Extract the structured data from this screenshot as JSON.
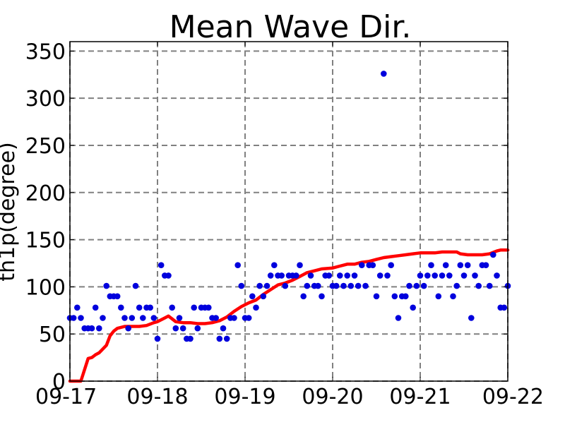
{
  "chart_data": {
    "type": "scatter",
    "title": "Mean Wave Dir.",
    "xlabel": "",
    "ylabel": "th1p(degree)",
    "x_ticks": [
      "09-17",
      "09-18",
      "09-19",
      "09-20",
      "09-21",
      "09-22"
    ],
    "y_ticks": [
      "0",
      "50",
      "100",
      "150",
      "200",
      "250",
      "300",
      "350"
    ],
    "xlim": [
      "09-17",
      "09-22"
    ],
    "ylim": [
      0,
      360
    ],
    "grid": true,
    "legend": "none",
    "series": [
      {
        "kind": "scatter",
        "color": "#0000dd",
        "points": [
          [
            "09-17 00:00",
            67
          ],
          [
            "09-17 01:00",
            67
          ],
          [
            "09-17 02:00",
            78
          ],
          [
            "09-17 03:00",
            67
          ],
          [
            "09-17 04:00",
            56
          ],
          [
            "09-17 05:00",
            56
          ],
          [
            "09-17 06:00",
            56
          ],
          [
            "09-17 07:00",
            78
          ],
          [
            "09-17 08:00",
            56
          ],
          [
            "09-17 09:00",
            67
          ],
          [
            "09-17 10:00",
            101
          ],
          [
            "09-17 11:00",
            90
          ],
          [
            "09-17 12:00",
            90
          ],
          [
            "09-17 13:00",
            90
          ],
          [
            "09-17 14:00",
            78
          ],
          [
            "09-17 15:00",
            67
          ],
          [
            "09-17 16:00",
            56
          ],
          [
            "09-17 17:00",
            67
          ],
          [
            "09-17 18:00",
            101
          ],
          [
            "09-17 19:00",
            78
          ],
          [
            "09-17 20:00",
            67
          ],
          [
            "09-17 21:00",
            78
          ],
          [
            "09-17 22:00",
            78
          ],
          [
            "09-17 23:00",
            67
          ],
          [
            "09-18 00:00",
            45
          ],
          [
            "09-18 01:00",
            123
          ],
          [
            "09-18 02:00",
            112
          ],
          [
            "09-18 03:00",
            112
          ],
          [
            "09-18 04:00",
            78
          ],
          [
            "09-18 05:00",
            56
          ],
          [
            "09-18 06:00",
            67
          ],
          [
            "09-18 07:00",
            56
          ],
          [
            "09-18 08:00",
            45
          ],
          [
            "09-18 09:00",
            45
          ],
          [
            "09-18 10:00",
            78
          ],
          [
            "09-18 11:00",
            56
          ],
          [
            "09-18 12:00",
            78
          ],
          [
            "09-18 13:00",
            78
          ],
          [
            "09-18 14:00",
            78
          ],
          [
            "09-18 15:00",
            67
          ],
          [
            "09-18 16:00",
            67
          ],
          [
            "09-18 17:00",
            45
          ],
          [
            "09-18 18:00",
            56
          ],
          [
            "09-18 19:00",
            45
          ],
          [
            "09-18 20:00",
            67
          ],
          [
            "09-18 21:00",
            67
          ],
          [
            "09-18 22:00",
            123
          ],
          [
            "09-18 23:00",
            101
          ],
          [
            "09-19 00:00",
            67
          ],
          [
            "09-19 01:00",
            67
          ],
          [
            "09-19 02:00",
            90
          ],
          [
            "09-19 03:00",
            78
          ],
          [
            "09-19 04:00",
            101
          ],
          [
            "09-19 05:00",
            90
          ],
          [
            "09-19 06:00",
            101
          ],
          [
            "09-19 07:00",
            112
          ],
          [
            "09-19 08:00",
            123
          ],
          [
            "09-19 09:00",
            112
          ],
          [
            "09-19 10:00",
            112
          ],
          [
            "09-19 11:00",
            101
          ],
          [
            "09-19 12:00",
            112
          ],
          [
            "09-19 13:00",
            112
          ],
          [
            "09-19 14:00",
            112
          ],
          [
            "09-19 15:00",
            123
          ],
          [
            "09-19 16:00",
            90
          ],
          [
            "09-19 17:00",
            101
          ],
          [
            "09-19 18:00",
            112
          ],
          [
            "09-19 19:00",
            101
          ],
          [
            "09-19 20:00",
            101
          ],
          [
            "09-19 21:00",
            90
          ],
          [
            "09-19 22:00",
            112
          ],
          [
            "09-19 23:00",
            112
          ],
          [
            "09-20 00:00",
            101
          ],
          [
            "09-20 01:00",
            101
          ],
          [
            "09-20 02:00",
            112
          ],
          [
            "09-20 03:00",
            101
          ],
          [
            "09-20 04:00",
            112
          ],
          [
            "09-20 05:00",
            101
          ],
          [
            "09-20 06:00",
            112
          ],
          [
            "09-20 07:00",
            101
          ],
          [
            "09-20 08:00",
            123
          ],
          [
            "09-20 09:00",
            101
          ],
          [
            "09-20 10:00",
            123
          ],
          [
            "09-20 11:00",
            123
          ],
          [
            "09-20 12:00",
            90
          ],
          [
            "09-20 13:00",
            112
          ],
          [
            "09-20 14:00",
            326
          ],
          [
            "09-20 15:00",
            112
          ],
          [
            "09-20 16:00",
            123
          ],
          [
            "09-20 17:00",
            90
          ],
          [
            "09-20 18:00",
            67
          ],
          [
            "09-20 19:00",
            90
          ],
          [
            "09-20 20:00",
            90
          ],
          [
            "09-20 21:00",
            101
          ],
          [
            "09-20 22:00",
            78
          ],
          [
            "09-20 23:00",
            101
          ],
          [
            "09-21 00:00",
            112
          ],
          [
            "09-21 01:00",
            101
          ],
          [
            "09-21 02:00",
            112
          ],
          [
            "09-21 03:00",
            123
          ],
          [
            "09-21 04:00",
            112
          ],
          [
            "09-21 05:00",
            90
          ],
          [
            "09-21 06:00",
            112
          ],
          [
            "09-21 07:00",
            123
          ],
          [
            "09-21 08:00",
            112
          ],
          [
            "09-21 09:00",
            90
          ],
          [
            "09-21 10:00",
            101
          ],
          [
            "09-21 11:00",
            123
          ],
          [
            "09-21 12:00",
            112
          ],
          [
            "09-21 13:00",
            123
          ],
          [
            "09-21 14:00",
            67
          ],
          [
            "09-21 15:00",
            112
          ],
          [
            "09-21 16:00",
            101
          ],
          [
            "09-21 17:00",
            123
          ],
          [
            "09-21 18:00",
            123
          ],
          [
            "09-21 19:00",
            101
          ],
          [
            "09-21 20:00",
            134
          ],
          [
            "09-21 21:00",
            112
          ],
          [
            "09-21 22:00",
            78
          ],
          [
            "09-21 23:00",
            78
          ],
          [
            "09-22 00:00",
            101
          ]
        ]
      },
      {
        "kind": "line",
        "color": "#ff0000",
        "points": [
          [
            "09-17 00:00",
            0
          ],
          [
            "09-17 02:00",
            0
          ],
          [
            "09-17 03:00",
            0
          ],
          [
            "09-17 05:00",
            24
          ],
          [
            "09-17 06:00",
            25
          ],
          [
            "09-17 07:00",
            28
          ],
          [
            "09-17 08:00",
            30
          ],
          [
            "09-17 09:00",
            34
          ],
          [
            "09-17 10:00",
            38
          ],
          [
            "09-17 11:00",
            48
          ],
          [
            "09-17 12:00",
            53
          ],
          [
            "09-17 13:00",
            56
          ],
          [
            "09-17 15:00",
            58
          ],
          [
            "09-17 17:00",
            58
          ],
          [
            "09-17 19:00",
            58
          ],
          [
            "09-17 21:00",
            59
          ],
          [
            "09-17 23:00",
            62
          ],
          [
            "09-18 00:00",
            63
          ],
          [
            "09-18 02:00",
            67
          ],
          [
            "09-18 03:00",
            69
          ],
          [
            "09-18 04:00",
            66
          ],
          [
            "09-18 05:00",
            63
          ],
          [
            "09-18 07:00",
            62
          ],
          [
            "09-18 09:00",
            62
          ],
          [
            "09-18 11:00",
            61
          ],
          [
            "09-18 13:00",
            61
          ],
          [
            "09-18 15:00",
            62
          ],
          [
            "09-18 17:00",
            64
          ],
          [
            "09-18 19:00",
            68
          ],
          [
            "09-18 21:00",
            74
          ],
          [
            "09-18 23:00",
            79
          ],
          [
            "09-19 01:00",
            83
          ],
          [
            "09-19 03:00",
            86
          ],
          [
            "09-19 05:00",
            92
          ],
          [
            "09-19 07:00",
            97
          ],
          [
            "09-19 09:00",
            102
          ],
          [
            "09-19 11:00",
            104
          ],
          [
            "09-19 13:00",
            107
          ],
          [
            "09-19 15:00",
            111
          ],
          [
            "09-19 17:00",
            115
          ],
          [
            "09-19 19:00",
            117
          ],
          [
            "09-19 21:00",
            119
          ],
          [
            "09-20 00:00",
            120
          ],
          [
            "09-20 02:00",
            122
          ],
          [
            "09-20 04:00",
            124
          ],
          [
            "09-20 06:00",
            124
          ],
          [
            "09-20 08:00",
            126
          ],
          [
            "09-20 10:00",
            127
          ],
          [
            "09-20 12:00",
            129
          ],
          [
            "09-20 14:00",
            131
          ],
          [
            "09-20 16:00",
            132
          ],
          [
            "09-20 18:00",
            133
          ],
          [
            "09-20 20:00",
            134
          ],
          [
            "09-20 22:00",
            135
          ],
          [
            "09-21 00:00",
            136
          ],
          [
            "09-21 02:00",
            136
          ],
          [
            "09-21 04:00",
            136
          ],
          [
            "09-21 06:00",
            137
          ],
          [
            "09-21 08:00",
            137
          ],
          [
            "09-21 10:00",
            137
          ],
          [
            "09-21 11:00",
            135
          ],
          [
            "09-21 13:00",
            134
          ],
          [
            "09-21 15:00",
            134
          ],
          [
            "09-21 17:00",
            134
          ],
          [
            "09-21 19:00",
            135
          ],
          [
            "09-21 21:00",
            138
          ],
          [
            "09-21 22:00",
            139
          ],
          [
            "09-22 00:00",
            139
          ]
        ]
      }
    ]
  }
}
